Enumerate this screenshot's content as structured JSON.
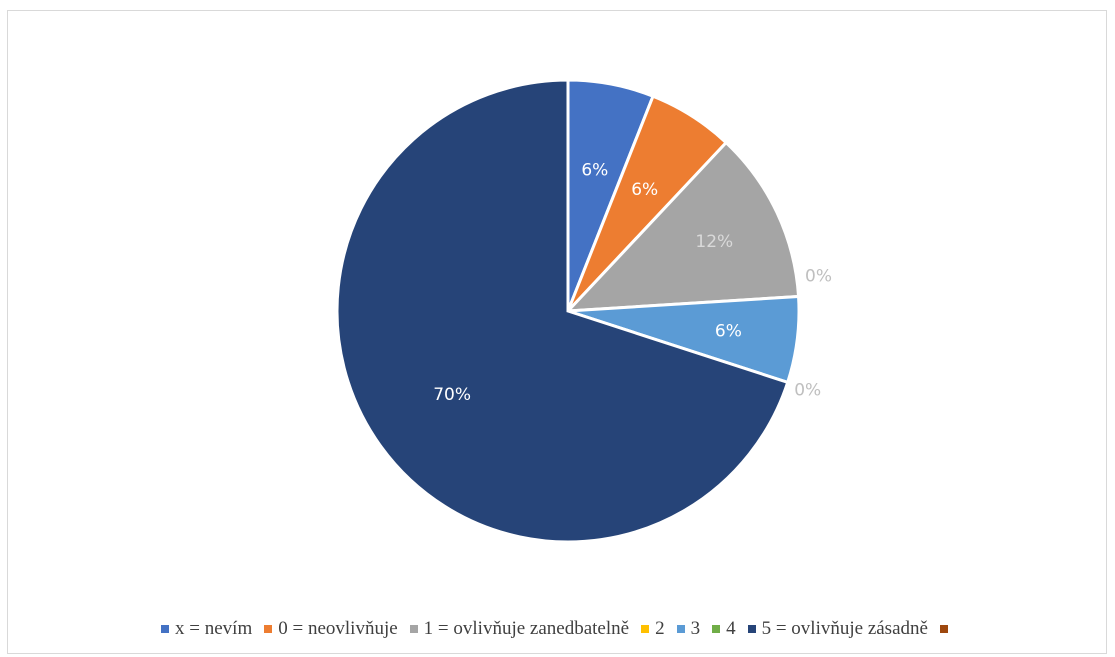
{
  "chart_data": {
    "type": "pie",
    "title": "",
    "categories": [
      "x = nevím",
      "0 = neovlivňuje",
      "1 = ovlivňuje zanedbatelně",
      "2",
      "3",
      "4",
      "5 = ovlivňuje zásadně",
      ""
    ],
    "values": [
      6,
      6,
      12,
      0,
      6,
      0,
      70,
      0
    ],
    "data_labels": [
      "6%",
      "6%",
      "12%",
      "0%",
      "6%",
      "0%",
      "70%",
      ""
    ],
    "colors": [
      "#4472c4",
      "#ed7d31",
      "#a5a5a5",
      "#ffc000",
      "#5b9bd5",
      "#70ad47",
      "#264478",
      "#9e480e"
    ],
    "legend_position": "bottom",
    "start_angle_deg": 0,
    "direction": "clockwise"
  }
}
